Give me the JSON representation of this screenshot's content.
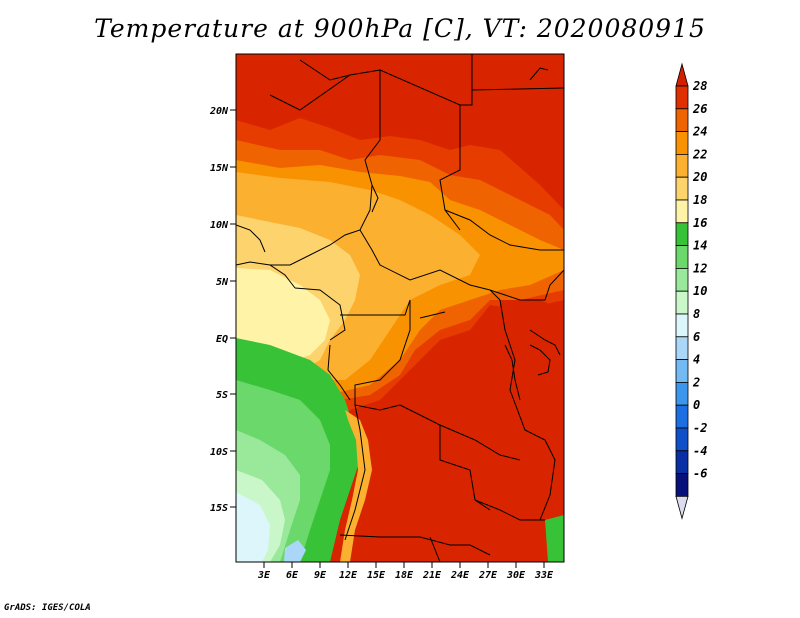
{
  "title": "Temperature at 900hPa [C], VT: 2020080915",
  "credit": "GrADS: IGES/COLA",
  "y_axis_labels": [
    "20N",
    "15N",
    "10N",
    "5N",
    "EQ",
    "5S",
    "10S",
    "15S"
  ],
  "x_axis_labels": [
    "3E",
    "6E",
    "9E",
    "12E",
    "15E",
    "18E",
    "21E",
    "24E",
    "27E",
    "30E",
    "33E"
  ],
  "colorbar": {
    "labels": [
      "28",
      "26",
      "24",
      "22",
      "20",
      "18",
      "16",
      "14",
      "12",
      "10",
      "8",
      "6",
      "4",
      "2",
      "0",
      "-2",
      "-4",
      "-6"
    ],
    "colors": [
      "#d52000",
      "#e03000",
      "#ef6400",
      "#f99200",
      "#fbb030",
      "#fcd36d",
      "#fff3a8",
      "#38c238",
      "#6ad86a",
      "#9ae89a",
      "#c9f7c9",
      "#dcf6fb",
      "#aad7f8",
      "#73b9f2",
      "#3c96ec",
      "#1c6fe0",
      "#0f4fc8",
      "#0a2ea4",
      "#08117a",
      "#dcdcf0"
    ]
  },
  "palette": {
    "t28": "#d92400",
    "t26": "#e63c00",
    "t24": "#ef6400",
    "t22": "#f99200",
    "t20": "#fbb030",
    "t18": "#fcd36d",
    "t16": "#fff3a8",
    "t14": "#38c238",
    "t12": "#6ad86a",
    "t10": "#9ae89a",
    "t8": "#c9f7c9",
    "t6": "#dcf6fb",
    "t4": "#aad7f8"
  }
}
